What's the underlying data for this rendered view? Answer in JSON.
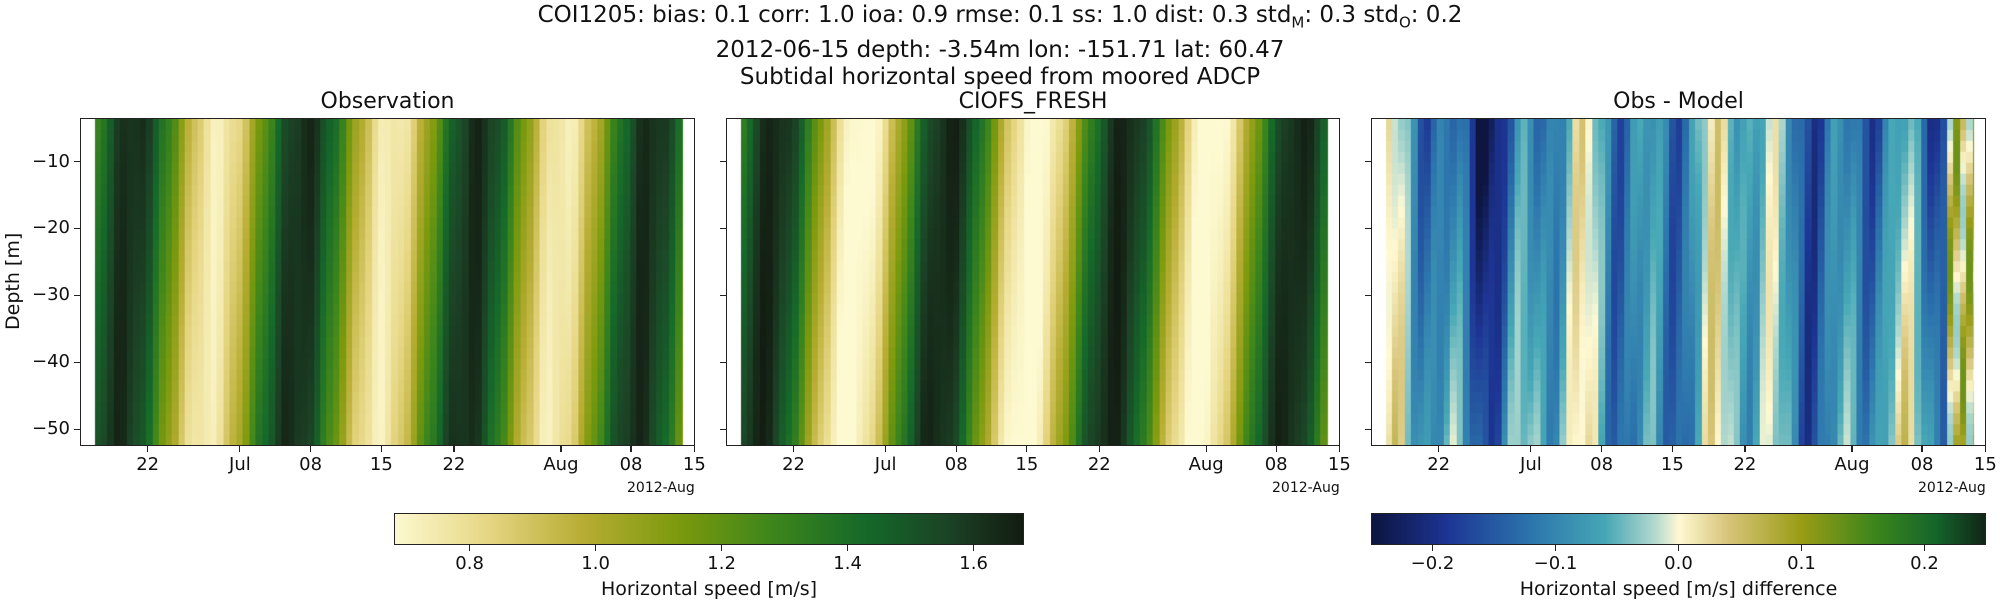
{
  "title": {
    "line1_prefix": "COI1205: bias: 0.1  corr: 1.0  ioa: 0.9  rmse: 0.1  ss: 1.0  dist: 0.3  std",
    "line1_sub_m": "M",
    "line1_mid": ": 0.3  std",
    "line1_sub_o": "O",
    "line1_suffix": ": 0.2",
    "line2": "2012-06-15 depth: -3.54m lon: -151.71 lat: 60.47",
    "line3": "Subtidal horizontal speed from moored ADCP"
  },
  "chart_data": [
    {
      "type": "heatmap",
      "title": "Observation",
      "ylabel": "Depth [m]",
      "x_tick_labels": [
        "22",
        "Jul",
        "08",
        "15",
        "22",
        "Aug",
        "08",
        "15"
      ],
      "x_offset_label": "2012-Aug",
      "y_tick_labels": [
        "−10",
        "−20",
        "−30",
        "−40",
        "−50"
      ],
      "y_ticks": [
        -10,
        -20,
        -30,
        -40,
        -50
      ],
      "ylim": [
        -52.5,
        -3.5
      ],
      "colormap": "speed",
      "clim": [
        0.68,
        1.68
      ]
    },
    {
      "type": "heatmap",
      "title": "CIOFS_FRESH",
      "x_tick_labels": [
        "22",
        "Jul",
        "08",
        "15",
        "22",
        "Aug",
        "08",
        "15"
      ],
      "x_offset_label": "2012-Aug",
      "y_ticks": [
        -10,
        -20,
        -30,
        -40,
        -50
      ],
      "ylim": [
        -52.5,
        -3.5
      ],
      "colormap": "speed",
      "clim": [
        0.68,
        1.68
      ]
    },
    {
      "type": "heatmap",
      "title": "Obs - Model",
      "x_tick_labels": [
        "22",
        "Jul",
        "08",
        "15",
        "22",
        "Aug",
        "08",
        "15"
      ],
      "x_offset_label": "2012-Aug",
      "y_ticks": [
        -10,
        -20,
        -30,
        -40,
        -50
      ],
      "ylim": [
        -52.5,
        -3.5
      ],
      "colormap": "diff",
      "clim": [
        -0.25,
        0.25
      ]
    }
  ],
  "colorbars": [
    {
      "label": "Horizontal speed [m/s]",
      "ticks": [
        0.8,
        1.0,
        1.2,
        1.4,
        1.6
      ],
      "tick_labels": [
        "0.8",
        "1.0",
        "1.2",
        "1.4",
        "1.6"
      ],
      "range": [
        0.68,
        1.68
      ],
      "colormap": "speed"
    },
    {
      "label": "Horizontal speed [m/s] difference",
      "ticks": [
        -0.2,
        -0.1,
        0.0,
        0.1,
        0.2
      ],
      "tick_labels": [
        "−0.2",
        "−0.1",
        "0.0",
        "0.1",
        "0.2"
      ],
      "range": [
        -0.25,
        0.25
      ],
      "colormap": "diff"
    }
  ],
  "colors": {
    "speed_low": "#fdf8cf",
    "speed_mid": "#7a9a0a",
    "speed_high": "#0f2a14",
    "diff_low": "#0e1a40",
    "diff_zero": "#fff8d0",
    "diff_high": "#0e2a14"
  }
}
